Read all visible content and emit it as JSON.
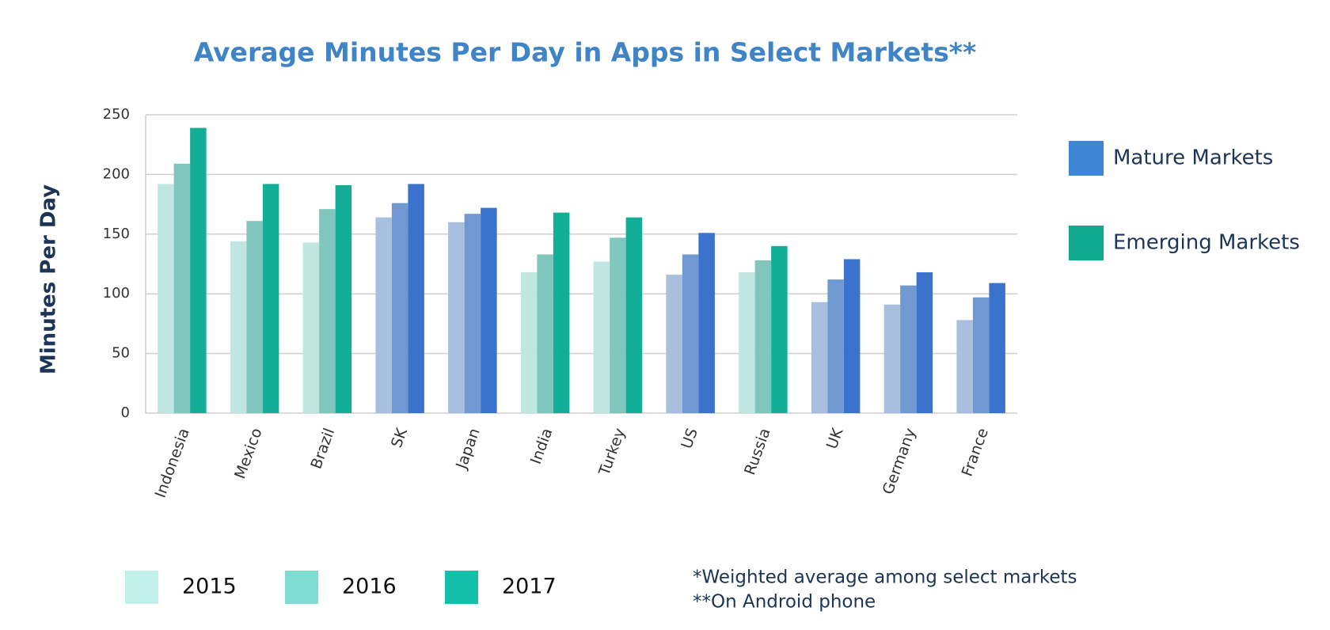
{
  "chart_data": {
    "type": "bar",
    "title": "Average Minutes Per Day in Apps in Select Markets**",
    "y_label": "Minutes Per Day",
    "categories": [
      "Indonesia",
      "Mexico",
      "Brazil",
      "SK",
      "Japan",
      "India",
      "Turkey",
      "US",
      "Russia",
      "UK",
      "Germany",
      "France"
    ],
    "series": [
      {
        "name": "2015",
        "color": "#c2f0ea",
        "values": [
          192,
          144,
          143,
          164,
          160,
          118,
          127,
          116,
          118,
          93,
          91,
          78
        ],
        "colors": [
          "#bfe6e0",
          "#bfe6e0",
          "#bfe6e0",
          "#a9bfe0",
          "#a9bfe0",
          "#bfe6e0",
          "#bfe6e0",
          "#a9bfe0",
          "#bfe6e0",
          "#a9bfe0",
          "#a9bfe0",
          "#a9bfe0"
        ]
      },
      {
        "name": "2016",
        "color": "#7fdcd2",
        "values": [
          209,
          161,
          171,
          176,
          167,
          133,
          147,
          133,
          128,
          112,
          107,
          97
        ],
        "colors": [
          "#80c6bd",
          "#80c6bd",
          "#80c6bd",
          "#7199d1",
          "#7199d1",
          "#80c6bd",
          "#80c6bd",
          "#7199d1",
          "#80c6bd",
          "#7199d1",
          "#7199d1",
          "#7199d1"
        ]
      },
      {
        "name": "2017",
        "color": "#14bfa9",
        "values": [
          239,
          192,
          191,
          192,
          172,
          168,
          164,
          151,
          140,
          129,
          118,
          109
        ],
        "colors": [
          "#12ae98",
          "#12ae98",
          "#12ae98",
          "#3a72cc",
          "#3a72cc",
          "#12ae98",
          "#12ae98",
          "#3a72cc",
          "#12ae98",
          "#3a72cc",
          "#3a72cc",
          "#3a72cc"
        ]
      }
    ],
    "market_legend": [
      {
        "name": "Mature Markets",
        "color": "#3d86d6"
      },
      {
        "name": "Emerging Markets",
        "color": "#10a98f"
      }
    ],
    "footnotes": [
      "*Weighted average among select markets",
      "**On Android phone"
    ],
    "ylim": [
      0,
      250
    ],
    "yticks": [
      0,
      50,
      100,
      150,
      200,
      250
    ],
    "grid": true
  }
}
